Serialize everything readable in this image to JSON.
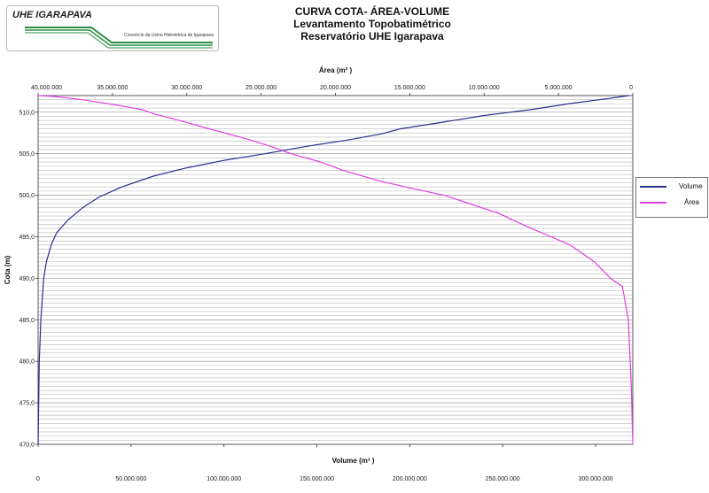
{
  "logo": {
    "brand": "UHE IGARAPAVA",
    "subtitle": "Consórcio da Usina Hidrelétrica de Igarapava"
  },
  "header": {
    "title": "CURVA COTA- ÁREA-VOLUME",
    "subtitle": "Levantamento Topobatimétrico",
    "subtitle2": "Reservatório UHE Igarapava"
  },
  "chart_data": {
    "type": "line",
    "title": "CURVA COTA- ÁREA-VOLUME",
    "ylabel": "Cota (m)",
    "top_xlabel": "Área (m² )",
    "bottom_xlabel": "Volume (m³ )",
    "ylim": [
      470,
      512
    ],
    "yticks": [
      "470,0",
      "475,0",
      "480,0",
      "485,0",
      "490,0",
      "495,0",
      "500,0",
      "505,0",
      "510,0"
    ],
    "area_axis": {
      "range": [
        40000000,
        0
      ],
      "ticks": [
        "40.000.000",
        "35.000.000",
        "30.000.000",
        "25.000.000",
        "20.000.000",
        "15.000.000",
        "10.000.000",
        "5.000.000",
        "0"
      ]
    },
    "volume_axis": {
      "range": [
        0,
        320000000
      ],
      "ticks": [
        "0",
        "50.000.000",
        "100.000.000",
        "150.000.000",
        "200.000.000",
        "250.000.000",
        "300.000.000"
      ]
    },
    "grid": true,
    "legend_position": "right",
    "series": [
      {
        "name": "Volume",
        "color": "#2b2f8f",
        "axis": "bottom",
        "points": [
          [
            0,
            470
          ],
          [
            600000,
            480
          ],
          [
            1500000,
            485
          ],
          [
            3000000,
            490
          ],
          [
            4500000,
            492
          ],
          [
            7000000,
            494
          ],
          [
            10000000,
            495.5
          ],
          [
            16000000,
            497
          ],
          [
            24000000,
            498.5
          ],
          [
            33000000,
            499.8
          ],
          [
            45000000,
            501
          ],
          [
            62000000,
            502.3
          ],
          [
            80000000,
            503.3
          ],
          [
            100000000,
            504.2
          ],
          [
            122000000,
            505
          ],
          [
            145000000,
            505.9
          ],
          [
            168000000,
            506.7
          ],
          [
            185000000,
            507.4
          ],
          [
            195000000,
            508
          ],
          [
            215000000,
            508.7
          ],
          [
            240000000,
            509.6
          ],
          [
            265000000,
            510.3
          ],
          [
            285000000,
            511
          ],
          [
            305000000,
            511.6
          ],
          [
            318000000,
            512
          ]
        ]
      },
      {
        "name": "Área",
        "color": "#e040e0",
        "axis": "top",
        "points": [
          [
            0,
            470
          ],
          [
            100000,
            477
          ],
          [
            300000,
            485
          ],
          [
            700000,
            489
          ],
          [
            1500000,
            490
          ],
          [
            2600000,
            492
          ],
          [
            4200000,
            494
          ],
          [
            5500000,
            495
          ],
          [
            7200000,
            496.3
          ],
          [
            9000000,
            497.8
          ],
          [
            11000000,
            499
          ],
          [
            12700000,
            500
          ],
          [
            14800000,
            500.8
          ],
          [
            17000000,
            501.7
          ],
          [
            19500000,
            503
          ],
          [
            21000000,
            504
          ],
          [
            23000000,
            505
          ],
          [
            24200000,
            505.8
          ],
          [
            26000000,
            506.8
          ],
          [
            28500000,
            508
          ],
          [
            30500000,
            509
          ],
          [
            32200000,
            509.8
          ],
          [
            33000000,
            510.3
          ],
          [
            34500000,
            510.8
          ],
          [
            37000000,
            511.5
          ],
          [
            39000000,
            511.9
          ],
          [
            40000000,
            512
          ]
        ]
      }
    ]
  }
}
